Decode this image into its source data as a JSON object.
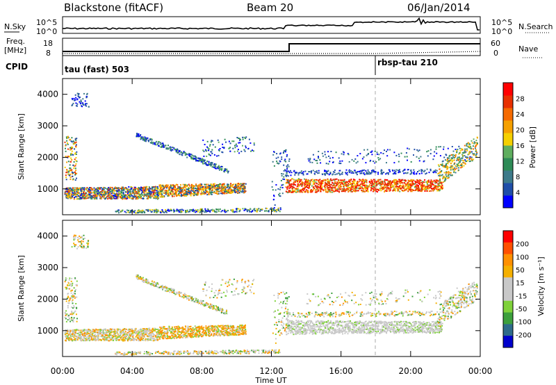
{
  "header": {
    "station": "Blackstone (fitACF)",
    "beam": "Beam 20",
    "date": "06/Jan/2014"
  },
  "side_labels": {
    "nsky": "N.Sky",
    "nsearch": "N.Search",
    "freq_line1": "Freq.",
    "freq_line2": "[MHz]",
    "nave": "Nave",
    "cpid": "CPID"
  },
  "noise_axis": {
    "left_top": "10^5",
    "left_bottom": "10^0",
    "right_top": "10^5",
    "right_bottom": "10^0"
  },
  "freq_axis": {
    "left_top": "18",
    "left_bottom": "8",
    "right_top": "60",
    "right_bottom": "0"
  },
  "cpid": [
    {
      "label": "tau (fast) 503",
      "start_hour": 0
    },
    {
      "label": "rbsp-tau 210",
      "start_hour": 18
    }
  ],
  "colors": {
    "power_scale": [
      "#0000ff",
      "#1f4ea8",
      "#3d7a8a",
      "#2e8b57",
      "#5fae5f",
      "#f5d000",
      "#f5a000",
      "#f56a00",
      "#e83000",
      "#ff0000"
    ],
    "velocity_scale": [
      "#ff0000",
      "#ff5000",
      "#ff9000",
      "#f5b000",
      "#c8c8c8",
      "#c8c8c8",
      "#7fd13a",
      "#3c9f3c",
      "#2e6b8a",
      "#0000cc"
    ]
  },
  "chart_data": [
    {
      "type": "heatmap",
      "title": "Power",
      "ylabel": "Slant Range [km]",
      "xlabel": "Time UT",
      "x_ticks": [
        "00:00",
        "04:00",
        "08:00",
        "12:00",
        "16:00",
        "20:00",
        "00:00"
      ],
      "y_ticks": [
        "1000",
        "2000",
        "3000",
        "4000"
      ],
      "xlim": [
        0,
        24
      ],
      "ylim": [
        180,
        4500
      ],
      "colorbar_label": "Power [dB]",
      "colorbar_ticks": [
        "4",
        "8",
        "12",
        "16",
        "20",
        "24",
        "28"
      ],
      "colorbar_range": [
        0,
        30
      ]
    },
    {
      "type": "heatmap",
      "title": "Velocity",
      "ylabel": "Slant Range [km]",
      "xlabel": "Time UT",
      "x_ticks": [
        "00:00",
        "04:00",
        "08:00",
        "12:00",
        "16:00",
        "20:00",
        "00:00"
      ],
      "y_ticks": [
        "1000",
        "2000",
        "3000",
        "4000"
      ],
      "xlim": [
        0,
        24
      ],
      "ylim": [
        180,
        4500
      ],
      "colorbar_label": "Velocity [m s⁻¹]",
      "colorbar_ticks": [
        "200",
        "100",
        "50",
        "15",
        "-15",
        "-50",
        "-100",
        "-200"
      ],
      "colorbar_range": [
        -250,
        250
      ]
    }
  ],
  "x_axis_label": "Time UT"
}
